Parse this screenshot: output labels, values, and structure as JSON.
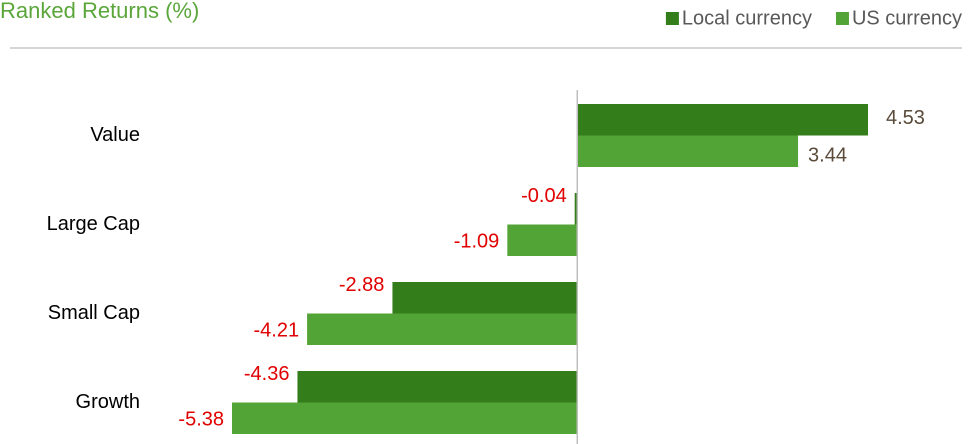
{
  "chart_data": {
    "type": "hbar",
    "title": "Ranked Returns (%)",
    "categories": [
      "Value",
      "Large Cap",
      "Small Cap",
      "Growth"
    ],
    "series": [
      {
        "name": "Local currency",
        "color": "#347d1b",
        "values": [
          4.53,
          -0.04,
          -2.88,
          -4.36
        ]
      },
      {
        "name": "US currency",
        "color": "#53a436",
        "values": [
          3.44,
          -1.09,
          -4.21,
          -5.38
        ]
      }
    ],
    "legend": "top-right"
  }
}
